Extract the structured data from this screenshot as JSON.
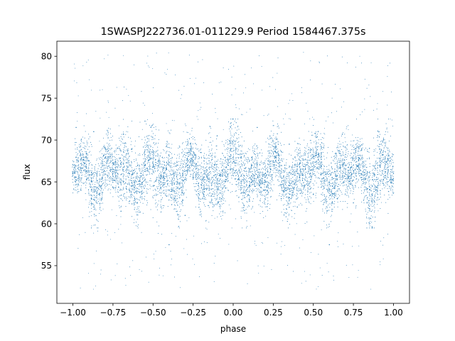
{
  "chart_data": {
    "type": "scatter",
    "title": "1SWASPJ222736.01-011229.9 Period 1584467.375s",
    "xlabel": "phase",
    "ylabel": "flux",
    "xlim": [
      -1.1,
      1.1
    ],
    "ylim": [
      50.5,
      81.8
    ],
    "xticks": [
      -1.0,
      -0.75,
      -0.5,
      -0.25,
      0.0,
      0.25,
      0.5,
      0.75,
      1.0
    ],
    "xtick_labels": [
      "−1.00",
      "−0.75",
      "−0.50",
      "−0.25",
      "0.00",
      "0.25",
      "0.50",
      "0.75",
      "1.00"
    ],
    "yticks": [
      55,
      60,
      65,
      70,
      75,
      80
    ],
    "ytick_labels": [
      "55",
      "60",
      "65",
      "70",
      "75",
      "80"
    ],
    "grid": false,
    "marker_color": "#1f77b4",
    "series": [
      {
        "x_range": [
          -1.0,
          1.0
        ],
        "symmetry": "mirrored about phase 0",
        "main_band": [
          62,
          70
        ],
        "outlier_range": [
          52,
          80.5
        ],
        "points": [
          [
            -1.0,
            66.0
          ],
          [
            -0.98,
            71.5
          ],
          [
            -0.95,
            64.0
          ],
          [
            -0.9,
            67.5
          ],
          [
            -0.87,
            71.0
          ],
          [
            -0.82,
            63.0
          ],
          [
            -0.78,
            68.0
          ],
          [
            -0.75,
            66.5
          ],
          [
            -0.72,
            69.0
          ],
          [
            -0.7,
            61.5
          ],
          [
            -0.65,
            66.0
          ],
          [
            -0.6,
            62.5
          ],
          [
            -0.55,
            67.0
          ],
          [
            -0.5,
            64.5
          ],
          [
            -0.45,
            62.0
          ],
          [
            -0.4,
            57.5
          ],
          [
            -0.35,
            67.0
          ],
          [
            -0.3,
            61.0
          ],
          [
            -0.25,
            65.5
          ],
          [
            -0.2,
            68.5
          ],
          [
            -0.15,
            64.0
          ],
          [
            -0.1,
            70.5
          ],
          [
            -0.05,
            65.0
          ],
          [
            0.0,
            66.5
          ],
          [
            0.05,
            68.0
          ],
          [
            0.1,
            64.5
          ],
          [
            0.15,
            71.5
          ],
          [
            0.2,
            66.0
          ],
          [
            0.25,
            67.5
          ],
          [
            0.3,
            63.0
          ],
          [
            0.35,
            69.5
          ],
          [
            0.4,
            62.0
          ],
          [
            0.45,
            66.5
          ],
          [
            0.5,
            63.5
          ],
          [
            0.55,
            68.0
          ],
          [
            0.6,
            57.5
          ],
          [
            0.65,
            63.0
          ],
          [
            0.7,
            67.0
          ],
          [
            0.75,
            62.5
          ],
          [
            0.8,
            66.0
          ],
          [
            0.85,
            69.0
          ],
          [
            0.9,
            64.0
          ],
          [
            0.95,
            65.5
          ],
          [
            1.0,
            66.0
          ]
        ]
      }
    ]
  }
}
